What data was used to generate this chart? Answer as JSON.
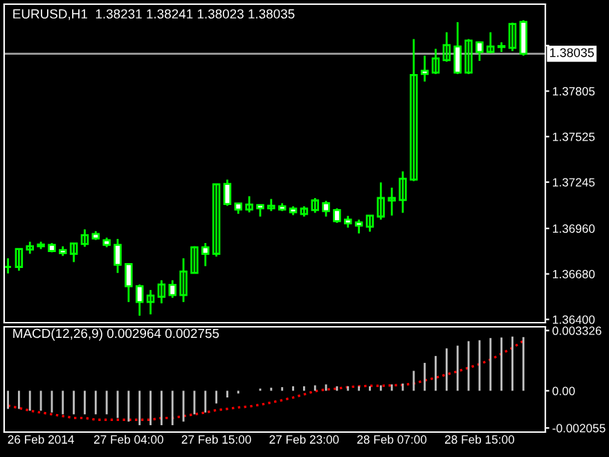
{
  "chart_data": [
    {
      "type": "candlestick",
      "title": "EURUSD,H1  1.38231 1.38241 1.38023 1.38035",
      "color": "#00ff00",
      "ohlc": [
        [
          1.36723,
          1.36776,
          1.36683,
          1.36723
        ],
        [
          1.36723,
          1.36836,
          1.367,
          1.36833
        ],
        [
          1.3683,
          1.36878,
          1.36804,
          1.3685
        ],
        [
          1.3685,
          1.36878,
          1.36833,
          1.36861
        ],
        [
          1.36859,
          1.3687,
          1.36813,
          1.36821
        ],
        [
          1.36827,
          1.3685,
          1.36791,
          1.36808
        ],
        [
          1.36804,
          1.36867,
          1.36753,
          1.36867
        ],
        [
          1.36864,
          1.36954,
          1.36847,
          1.36918
        ],
        [
          1.36926,
          1.36943,
          1.36889,
          1.36898
        ],
        [
          1.36887,
          1.36903,
          1.36844,
          1.36859
        ],
        [
          1.36859,
          1.36895,
          1.36686,
          1.36736
        ],
        [
          1.3674,
          1.3674,
          1.36507,
          1.36604
        ],
        [
          1.36604,
          1.36615,
          1.36423,
          1.36507
        ],
        [
          1.36507,
          1.36581,
          1.36431,
          1.36547
        ],
        [
          1.36539,
          1.36641,
          1.36499,
          1.36615
        ],
        [
          1.36613,
          1.36641,
          1.36533,
          1.3655
        ],
        [
          1.3655,
          1.36776,
          1.36507,
          1.36695
        ],
        [
          1.36686,
          1.3685,
          1.36686,
          1.36844
        ],
        [
          1.36844,
          1.3687,
          1.36728,
          1.36804
        ],
        [
          1.36804,
          1.37232,
          1.36787,
          1.37232
        ],
        [
          1.37234,
          1.3726,
          1.37099,
          1.3711
        ],
        [
          1.37113,
          1.37113,
          1.3705,
          1.37076
        ],
        [
          1.37076,
          1.37158,
          1.37059,
          1.37107
        ],
        [
          1.37104,
          1.37104,
          1.37033,
          1.37084
        ],
        [
          1.37084,
          1.37141,
          1.37067,
          1.37099
        ],
        [
          1.37096,
          1.37115,
          1.37067,
          1.37076
        ],
        [
          1.37082,
          1.37096,
          1.37042,
          1.37059
        ],
        [
          1.37048,
          1.37096,
          1.37033,
          1.37082
        ],
        [
          1.37073,
          1.37147,
          1.37056,
          1.37132
        ],
        [
          1.37115,
          1.3713,
          1.37033,
          1.37067
        ],
        [
          1.37073,
          1.37084,
          1.36994,
          1.37005
        ],
        [
          1.37014,
          1.37037,
          1.36965,
          1.36991
        ],
        [
          1.36997,
          1.37014,
          1.36929,
          1.36977
        ],
        [
          1.36971,
          1.37039,
          1.3694,
          1.37039
        ],
        [
          1.37033,
          1.37243,
          1.37014,
          1.37147
        ],
        [
          1.37132,
          1.37211,
          1.37039,
          1.37147
        ],
        [
          1.37135,
          1.37311,
          1.37056,
          1.37266
        ],
        [
          1.3726,
          1.38125,
          1.37251,
          1.37904
        ],
        [
          1.3793,
          1.38023,
          1.37864,
          1.3791
        ],
        [
          1.37919,
          1.38065,
          1.3791,
          1.38006
        ],
        [
          1.37995,
          1.38167,
          1.37986,
          1.38088
        ],
        [
          1.3808,
          1.38229,
          1.3791,
          1.37919
        ],
        [
          1.37919,
          1.38125,
          1.3791,
          1.38116
        ],
        [
          1.38105,
          1.38105,
          1.37991,
          1.38046
        ],
        [
          1.38046,
          1.38167,
          1.38037,
          1.3808
        ],
        [
          1.38076,
          1.38105,
          1.38046,
          1.38082
        ],
        [
          1.38071,
          1.38226,
          1.38051,
          1.38218
        ],
        [
          1.38231,
          1.38241,
          1.38023,
          1.38035
        ]
      ],
      "ylim": [
        1.3638,
        1.3834
      ],
      "yticks": [
        {
          "value": 1.364,
          "label": "1.36400"
        },
        {
          "value": 1.3668,
          "label": "1.36680"
        },
        {
          "value": 1.3696,
          "label": "1.36960"
        },
        {
          "value": 1.37245,
          "label": "1.37245"
        },
        {
          "value": 1.37525,
          "label": "1.37525"
        },
        {
          "value": 1.37805,
          "label": "1.37805"
        },
        {
          "value": 1.38085,
          "label": null
        }
      ],
      "ref_lines": [
        {
          "axis": "y",
          "value": 1.38035,
          "label": "1.38035",
          "color": "#a0a0a0"
        }
      ],
      "tick_labels": "y",
      "grid": false,
      "legend": false
    },
    {
      "type": "bar",
      "title": "MACD(12,26,9) 0.002964 0.002755",
      "categories": [
        null,
        null,
        null,
        "26 Feb 2014",
        null,
        null,
        null,
        null,
        null,
        null,
        null,
        "27 Feb 04:00",
        null,
        null,
        null,
        null,
        null,
        null,
        null,
        "27 Feb 15:00",
        null,
        null,
        null,
        null,
        null,
        null,
        null,
        "27 Feb 23:00",
        null,
        null,
        null,
        null,
        null,
        null,
        null,
        "28 Feb 07:00",
        null,
        null,
        null,
        null,
        null,
        null,
        null,
        "28 Feb 15:00",
        null,
        null,
        null,
        null
      ],
      "series": [
        {
          "type": "bar",
          "color": "#c0c0c0",
          "values": [
            -0.001,
            -0.001,
            -0.0011,
            -0.0011,
            -0.0012,
            -0.0013,
            -0.0013,
            -0.0013,
            -0.0013,
            -0.0013,
            -0.0015,
            -0.0017,
            -0.0019,
            -0.0019,
            -0.0019,
            -0.0019,
            -0.0017,
            -0.0013,
            -0.0012,
            -0.0007,
            -0.00037,
            -0.00015,
            null,
            0.00012,
            0.00017,
            0.0002,
            0.00025,
            0.00025,
            0.0003,
            0.00035,
            0.00025,
            0.00025,
            0.00025,
            0.00025,
            0.0003,
            0.00035,
            0.0004,
            0.0011,
            0.00154,
            0.00192,
            0.00234,
            0.00249,
            0.00274,
            0.00279,
            0.00291,
            0.00294,
            0.00299,
            0.002964
          ]
        },
        {
          "type": "line",
          "color": "#ff0000",
          "line_style": "dotted",
          "values": [
            -0.00082,
            -0.00095,
            -0.0011,
            -0.0012,
            -0.0013,
            -0.0014,
            -0.0015,
            -0.0015,
            -0.0016,
            -0.0016,
            -0.0016,
            -0.0016,
            -0.0016,
            -0.0016,
            -0.0015,
            -0.0015,
            -0.0014,
            -0.0013,
            -0.0012,
            -0.00107,
            -0.001,
            -0.00092,
            -0.00087,
            -0.00077,
            -0.00065,
            -0.00052,
            -0.00037,
            -0.0002,
            -2e-05,
            7e-05,
            0.00012,
            0.0002,
            0.00025,
            0.00027,
            0.00027,
            0.0003,
            0.00032,
            0.0004,
            0.00057,
            0.00072,
            0.0009,
            0.00107,
            0.00127,
            0.00147,
            0.00172,
            0.00204,
            0.00237,
            0.002755
          ]
        }
      ],
      "ylim": [
        -0.00228,
        0.00353
      ],
      "yticks": [
        0.003326,
        {
          "value": 0,
          "label": "0.00"
        },
        -0.002055
      ],
      "grid": false,
      "legend": false
    }
  ]
}
